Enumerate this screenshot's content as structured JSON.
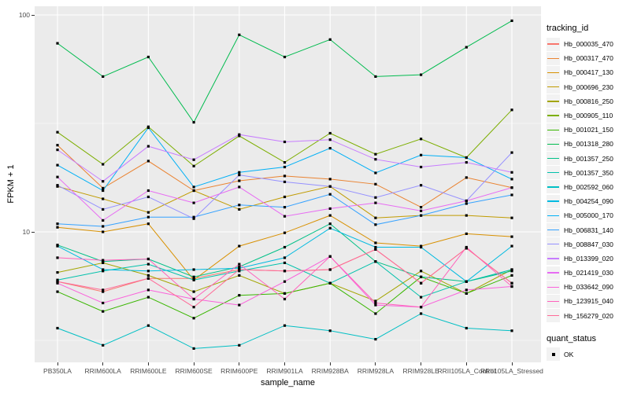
{
  "chart_data": {
    "type": "line",
    "title": "",
    "x_label": "sample_name",
    "y_label": "FPKM + 1",
    "y_scale": "log10",
    "y_domain": [
      2.5,
      110
    ],
    "y_ticks": [
      {
        "label": "100",
        "value": 100
      },
      {
        "label": "10",
        "value": 10
      }
    ],
    "y_minor_gridlines": [
      31.62,
      3.162
    ],
    "panel_bg": "#EBEBEB",
    "grid_color": "#FFFFFF",
    "point_marker": {
      "shape": "square",
      "color": "#000000",
      "size": 3.2
    },
    "legend_title": "tracking_id",
    "legend_position": "right",
    "categories": [
      "PB350LA",
      "RRIM600LA",
      "RRIM600LE",
      "RRIM600SE",
      "RRIM600PE",
      "RRIM901LA",
      "RRIM928BA",
      "RRIM928LA",
      "RRIM928LE",
      "RRII105LA_Control",
      "RRII105LA_Stressed"
    ],
    "series": [
      {
        "name": "Hb_000035_470",
        "color": "#F8766D",
        "values": [
          5.9,
          5.3,
          6.1,
          6.1,
          6.7,
          6.6,
          6.7,
          8.3,
          5.8,
          8.4,
          5.8
        ]
      },
      {
        "name": "Hb_000317_470",
        "color": "#EA8331",
        "values": [
          25.1,
          15.9,
          21.2,
          15.5,
          17.2,
          18.1,
          17.5,
          16.6,
          13.0,
          17.8,
          16.0
        ]
      },
      {
        "name": "Hb_000417_130",
        "color": "#D89000",
        "values": [
          10.5,
          10.0,
          10.9,
          6.0,
          8.6,
          9.9,
          11.9,
          8.9,
          8.6,
          9.8,
          9.5
        ]
      },
      {
        "name": "Hb_000696_230",
        "color": "#C09B00",
        "values": [
          16.2,
          14.2,
          12.3,
          15.5,
          12.7,
          14.5,
          16.2,
          11.6,
          11.9,
          11.9,
          11.6
        ]
      },
      {
        "name": "Hb_000816_250",
        "color": "#A3A500",
        "values": [
          6.5,
          7.2,
          6.3,
          5.3,
          6.3,
          5.2,
          5.8,
          4.8,
          6.6,
          5.2,
          6.7
        ]
      },
      {
        "name": "Hb_000905_110",
        "color": "#7CAE00",
        "values": [
          28.8,
          20.5,
          30.5,
          20.1,
          27.7,
          20.9,
          28.5,
          22.8,
          26.8,
          22.0,
          36.5
        ]
      },
      {
        "name": "Hb_001021_150",
        "color": "#39B600",
        "values": [
          5.3,
          4.3,
          5.0,
          4.0,
          5.1,
          5.2,
          5.8,
          4.2,
          6.2,
          5.2,
          6.3
        ]
      },
      {
        "name": "Hb_001318_280",
        "color": "#00BB4E",
        "values": [
          74,
          52,
          64,
          32,
          81,
          64,
          77,
          52,
          53,
          71,
          94
        ]
      },
      {
        "name": "Hb_001357_250",
        "color": "#00C087",
        "values": [
          8.7,
          7.3,
          7.5,
          6.2,
          6.9,
          8.5,
          10.9,
          7.3,
          6.2,
          5.9,
          6.6
        ]
      },
      {
        "name": "Hb_001357_350",
        "color": "#00C1AB",
        "values": [
          6.0,
          6.6,
          7.1,
          6.0,
          6.6,
          7.2,
          5.8,
          7.3,
          5.0,
          5.9,
          6.7
        ]
      },
      {
        "name": "Hb_002592_060",
        "color": "#00BFC4",
        "values": [
          3.6,
          3.0,
          3.7,
          2.9,
          3.0,
          3.7,
          3.5,
          3.2,
          4.2,
          3.6,
          3.5
        ]
      },
      {
        "name": "Hb_004254_090",
        "color": "#00BAE0",
        "values": [
          8.6,
          6.7,
          6.6,
          6.7,
          6.8,
          7.6,
          10.4,
          8.5,
          8.5,
          5.9,
          8.6
        ]
      },
      {
        "name": "Hb_005000_170",
        "color": "#00B0F6",
        "values": [
          20.3,
          15.5,
          30.2,
          16.1,
          18.8,
          19.9,
          24.3,
          18.7,
          22.6,
          22.0,
          17.5
        ]
      },
      {
        "name": "Hb_006831_140",
        "color": "#35A2FF",
        "values": [
          10.9,
          10.6,
          11.7,
          11.7,
          13.3,
          13.0,
          14.9,
          10.8,
          11.9,
          13.5,
          14.8
        ]
      },
      {
        "name": "Hb_008847_030",
        "color": "#9590FF",
        "values": [
          16.4,
          12.7,
          14.5,
          11.5,
          18.3,
          17.0,
          16.2,
          14.4,
          16.4,
          13.9,
          23.2
        ]
      },
      {
        "name": "Hb_013399_020",
        "color": "#C77CFF",
        "values": [
          23.9,
          17.1,
          24.8,
          21.5,
          28.1,
          26.0,
          26.6,
          21.6,
          19.9,
          20.9,
          18.8
        ]
      },
      {
        "name": "Hb_021419_030",
        "color": "#E76BF3",
        "values": [
          17.9,
          11.3,
          15.5,
          13.6,
          16.1,
          11.8,
          12.8,
          13.6,
          12.5,
          13.9,
          16.0
        ]
      },
      {
        "name": "Hb_033642_090",
        "color": "#FA62DB",
        "values": [
          5.8,
          4.7,
          5.4,
          4.9,
          4.6,
          5.9,
          7.7,
          4.6,
          4.5,
          5.4,
          5.6
        ]
      },
      {
        "name": "Hb_123915_040",
        "color": "#FF62BC",
        "values": [
          7.6,
          7.4,
          7.5,
          4.9,
          7.1,
          4.9,
          7.7,
          4.7,
          4.5,
          8.5,
          5.6
        ]
      },
      {
        "name": "Hb_156279_020",
        "color": "#FF6A98",
        "values": [
          5.9,
          5.4,
          6.1,
          4.5,
          6.7,
          6.6,
          6.7,
          8.3,
          5.8,
          8.4,
          5.8
        ]
      }
    ],
    "legend2": {
      "title": "quant_status",
      "items": [
        {
          "label": "OK"
        }
      ]
    }
  }
}
